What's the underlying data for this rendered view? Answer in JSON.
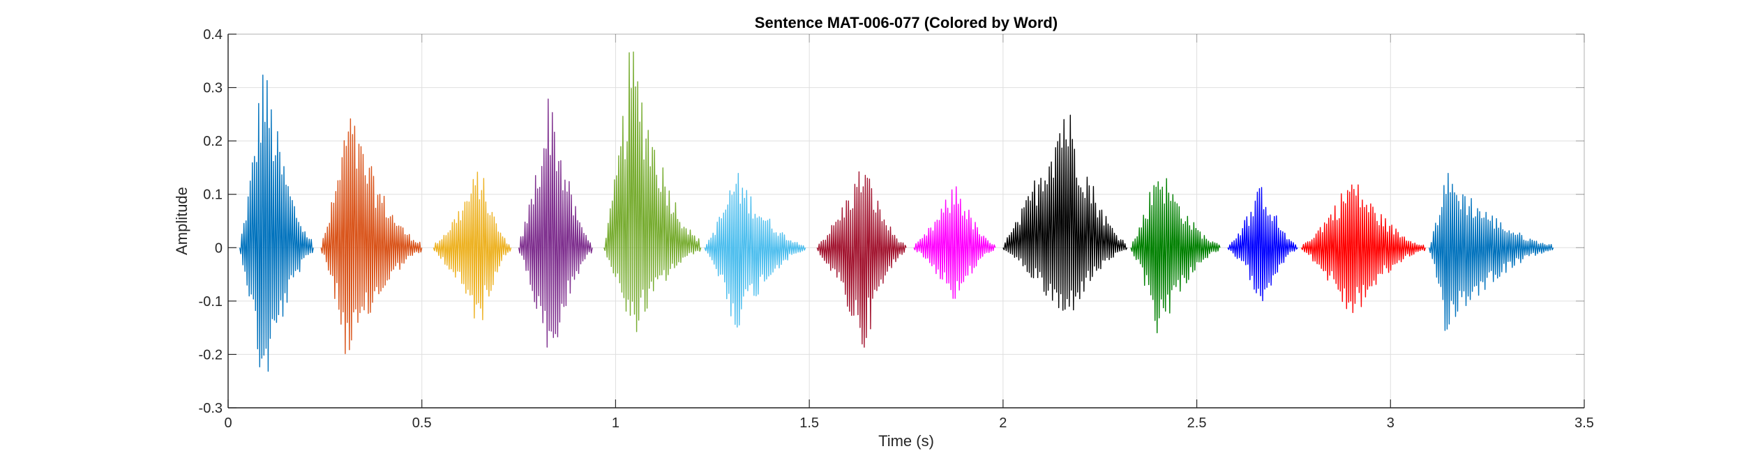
{
  "chart_data": {
    "type": "line",
    "title": "Sentence MAT-006-077 (Colored by Word)",
    "xlabel": "Time (s)",
    "ylabel": "Amplitude",
    "xlim": [
      0,
      3.5
    ],
    "ylim": [
      -0.3,
      0.4
    ],
    "xticks": [
      "0",
      "0.5",
      "1",
      "1.5",
      "2",
      "2.5",
      "3",
      "3.5"
    ],
    "xtick_values": [
      0,
      0.5,
      1,
      1.5,
      2,
      2.5,
      3,
      3.5
    ],
    "yticks": [
      "-0.3",
      "-0.2",
      "-0.1",
      "0",
      "0.1",
      "0.2",
      "0.3",
      "0.4"
    ],
    "ytick_values": [
      -0.3,
      -0.2,
      -0.1,
      0,
      0.1,
      0.2,
      0.3,
      0.4
    ],
    "grid": true,
    "series": [
      {
        "color": "#0072BD",
        "start": 0.03,
        "end": 0.22,
        "peak_time": 0.09,
        "max": 0.37,
        "min": -0.29
      },
      {
        "color": "#D95319",
        "start": 0.24,
        "end": 0.5,
        "peak_time": 0.31,
        "max": 0.27,
        "min": -0.23
      },
      {
        "color": "#EDB120",
        "start": 0.53,
        "end": 0.73,
        "peak_time": 0.65,
        "max": 0.16,
        "min": -0.16
      },
      {
        "color": "#7E2F8E",
        "start": 0.75,
        "end": 0.94,
        "peak_time": 0.83,
        "max": 0.31,
        "min": -0.25
      },
      {
        "color": "#77AC30",
        "start": 0.97,
        "end": 1.22,
        "peak_time": 1.04,
        "max": 0.4,
        "min": -0.18
      },
      {
        "color": "#4DBEEE",
        "start": 1.23,
        "end": 1.49,
        "peak_time": 1.31,
        "max": 0.15,
        "min": -0.16
      },
      {
        "color": "#A2142F",
        "start": 1.52,
        "end": 1.75,
        "peak_time": 1.64,
        "max": 0.17,
        "min": -0.2
      },
      {
        "color": "#FF00FF",
        "start": 1.77,
        "end": 1.98,
        "peak_time": 1.88,
        "max": 0.13,
        "min": -0.11
      },
      {
        "color": "#000000",
        "start": 2.0,
        "end": 2.32,
        "peak_time": 2.16,
        "max": 0.3,
        "min": -0.15
      },
      {
        "color": "#008000",
        "start": 2.33,
        "end": 2.56,
        "peak_time": 2.4,
        "max": 0.17,
        "min": -0.17
      },
      {
        "color": "#0000FF",
        "start": 2.58,
        "end": 2.76,
        "peak_time": 2.67,
        "max": 0.13,
        "min": -0.11
      },
      {
        "color": "#FF0000",
        "start": 2.77,
        "end": 3.09,
        "peak_time": 2.9,
        "max": 0.14,
        "min": -0.14
      },
      {
        "color": "#0072BD",
        "start": 3.1,
        "end": 3.42,
        "peak_time": 3.14,
        "max": 0.15,
        "min": -0.16
      }
    ]
  }
}
